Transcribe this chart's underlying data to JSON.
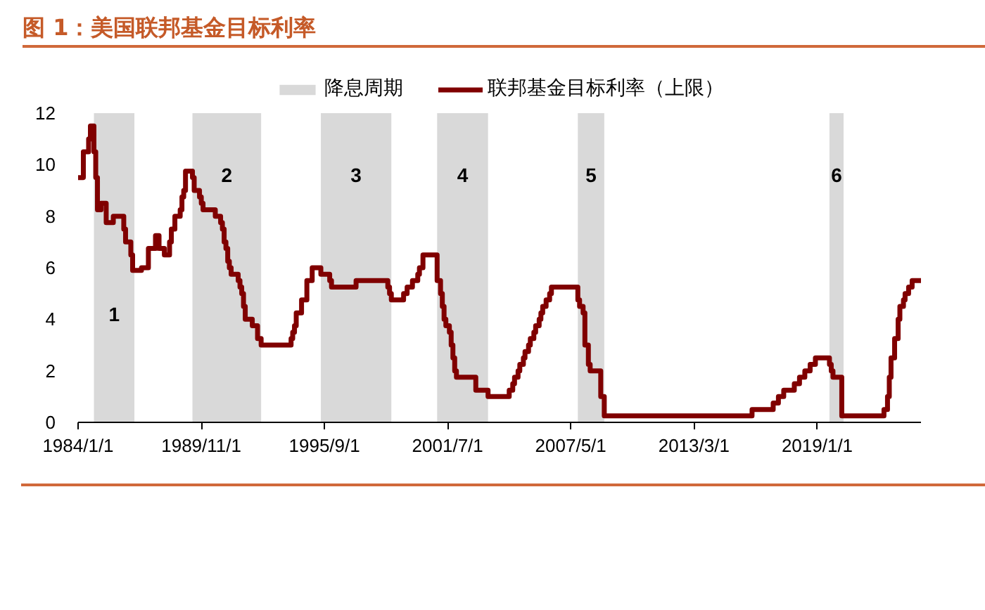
{
  "chart_data": {
    "type": "step",
    "title": "图 1：美国联邦基金目标利率",
    "x": [
      "1984-01",
      "1984-04",
      "1984-07",
      "1984-08",
      "1984-10",
      "1984-11",
      "1984-12",
      "1985-02",
      "1985-05",
      "1985-09",
      "1986-03",
      "1986-04",
      "1986-07",
      "1986-08",
      "1987-01",
      "1987-05",
      "1987-09",
      "1987-11",
      "1988-02",
      "1988-05",
      "1988-06",
      "1988-08",
      "1988-11",
      "1988-12",
      "1989-01",
      "1989-02",
      "1989-06",
      "1989-07",
      "1989-10",
      "1989-11",
      "1989-12",
      "1990-07",
      "1990-10",
      "1990-11",
      "1990-12",
      "1991-01",
      "1991-02",
      "1991-03",
      "1991-04",
      "1991-08",
      "1991-09",
      "1991-10",
      "1991-11",
      "1991-12",
      "1992-04",
      "1992-07",
      "1992-09",
      "1994-02",
      "1994-03",
      "1994-04",
      "1994-05",
      "1994-08",
      "1994-11",
      "1995-02",
      "1995-07",
      "1995-12",
      "1996-01",
      "1997-03",
      "1998-09",
      "1998-10",
      "1998-11",
      "1999-06",
      "1999-08",
      "1999-11",
      "2000-02",
      "2000-03",
      "2000-05",
      "2001-01",
      "2001-03",
      "2001-04",
      "2001-05",
      "2001-06",
      "2001-08",
      "2001-09",
      "2001-10",
      "2001-11",
      "2001-12",
      "2002-11",
      "2003-06",
      "2004-06",
      "2004-08",
      "2004-09",
      "2004-11",
      "2004-12",
      "2005-02",
      "2005-03",
      "2005-05",
      "2005-06",
      "2005-08",
      "2005-09",
      "2005-11",
      "2005-12",
      "2006-01",
      "2006-03",
      "2006-05",
      "2006-06",
      "2007-09",
      "2007-10",
      "2007-12",
      "2008-01",
      "2008-03",
      "2008-04",
      "2008-10",
      "2008-12",
      "2015-12",
      "2016-12",
      "2017-03",
      "2017-06",
      "2017-12",
      "2018-03",
      "2018-06",
      "2018-09",
      "2018-12",
      "2019-08",
      "2019-09",
      "2019-10",
      "2020-03",
      "2022-03",
      "2022-05",
      "2022-06",
      "2022-07",
      "2022-09",
      "2022-11",
      "2022-12",
      "2023-02",
      "2023-03",
      "2023-05",
      "2023-07",
      "2023-12"
    ],
    "series": [
      {
        "name": "联邦基金目标利率（上限）",
        "color": "#800000",
        "values": [
          9.5,
          10.5,
          11.0,
          11.5,
          10.5,
          9.5,
          8.25,
          8.5,
          7.75,
          8.0,
          7.5,
          7.0,
          6.5,
          5.9,
          6.0,
          6.75,
          7.25,
          6.75,
          6.5,
          7.0,
          7.5,
          8.0,
          8.25,
          8.75,
          9.0,
          9.75,
          9.5,
          9.0,
          8.75,
          8.5,
          8.25,
          8.0,
          7.75,
          7.5,
          7.0,
          6.75,
          6.25,
          6.0,
          5.75,
          5.5,
          5.25,
          5.0,
          4.5,
          4.0,
          3.75,
          3.25,
          3.0,
          3.25,
          3.5,
          3.75,
          4.25,
          4.75,
          5.5,
          6.0,
          5.75,
          5.5,
          5.25,
          5.5,
          5.25,
          5.0,
          4.75,
          5.0,
          5.25,
          5.5,
          5.75,
          6.0,
          6.5,
          5.5,
          5.0,
          4.5,
          4.0,
          3.75,
          3.5,
          3.0,
          2.5,
          2.0,
          1.75,
          1.25,
          1.0,
          1.25,
          1.5,
          1.75,
          2.0,
          2.25,
          2.5,
          2.75,
          3.0,
          3.25,
          3.5,
          3.75,
          4.0,
          4.25,
          4.5,
          4.75,
          5.0,
          5.25,
          4.75,
          4.5,
          4.25,
          3.0,
          2.25,
          2.0,
          1.0,
          0.25,
          0.5,
          0.75,
          1.0,
          1.25,
          1.5,
          1.75,
          2.0,
          2.25,
          2.5,
          2.25,
          2.0,
          1.75,
          0.25,
          0.5,
          1.0,
          1.75,
          2.5,
          3.25,
          4.0,
          4.5,
          4.75,
          5.0,
          5.25,
          5.5,
          5.5
        ]
      }
    ],
    "bands": [
      {
        "axis": "x",
        "from": "1984-10-01",
        "to": "1986-09-01",
        "label": "降息周期",
        "color": "#d9d9d9"
      },
      {
        "axis": "x",
        "from": "1989-06-01",
        "to": "1992-09-01",
        "color": "#d9d9d9"
      },
      {
        "axis": "x",
        "from": "1995-07-01",
        "to": "1998-11-01",
        "color": "#d9d9d9"
      },
      {
        "axis": "x",
        "from": "2001-01-01",
        "to": "2003-06-01",
        "color": "#d9d9d9"
      },
      {
        "axis": "x",
        "from": "2007-09-01",
        "to": "2008-12-01",
        "color": "#d9d9d9"
      },
      {
        "axis": "x",
        "from": "2019-08-01",
        "to": "2020-04-01",
        "color": "#d9d9d9"
      }
    ],
    "annotations": [
      "1",
      "2",
      "3",
      "4",
      "5",
      "6"
    ],
    "xlim": [
      "1984-01-01",
      "2023-12-01"
    ],
    "ylim": [
      0,
      12
    ],
    "xticks": [
      {
        "value": "1984-01-01",
        "label": "1984/1/1"
      },
      {
        "value": "1989-11-01",
        "label": "1989/11/1"
      },
      {
        "value": "1995-09-01",
        "label": "1995/9/1"
      },
      {
        "value": "2001-07-01",
        "label": "2001/7/1"
      },
      {
        "value": "2007-05-01",
        "label": "2007/5/1"
      },
      {
        "value": "2013-03-01",
        "label": "2013/3/1"
      },
      {
        "value": "2019-01-01",
        "label": "2019/1/1"
      }
    ],
    "yticks": [
      0,
      2,
      4,
      6,
      8,
      10,
      12
    ],
    "legend": "top"
  }
}
